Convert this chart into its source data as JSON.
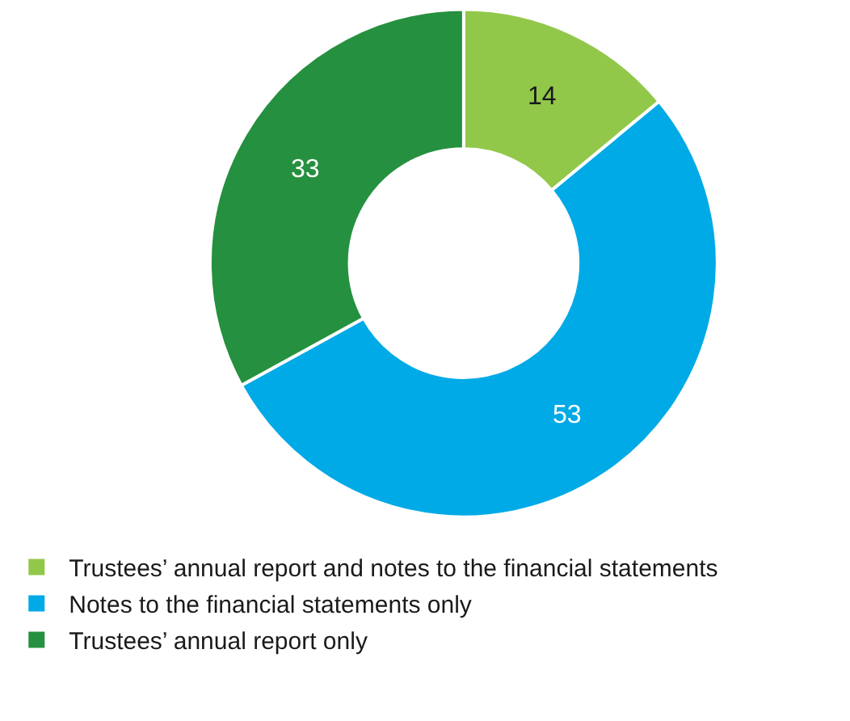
{
  "chart_data": {
    "type": "donut",
    "categories": [
      "Trustees’ annual report and notes to the financial statements",
      "Notes to the financial statements only",
      "Trustees’ annual report only"
    ],
    "values": [
      14,
      53,
      33
    ],
    "colors": [
      "#92c84a",
      "#00aae6",
      "#25903f"
    ],
    "data_labels": true,
    "legend": "bottom left"
  }
}
